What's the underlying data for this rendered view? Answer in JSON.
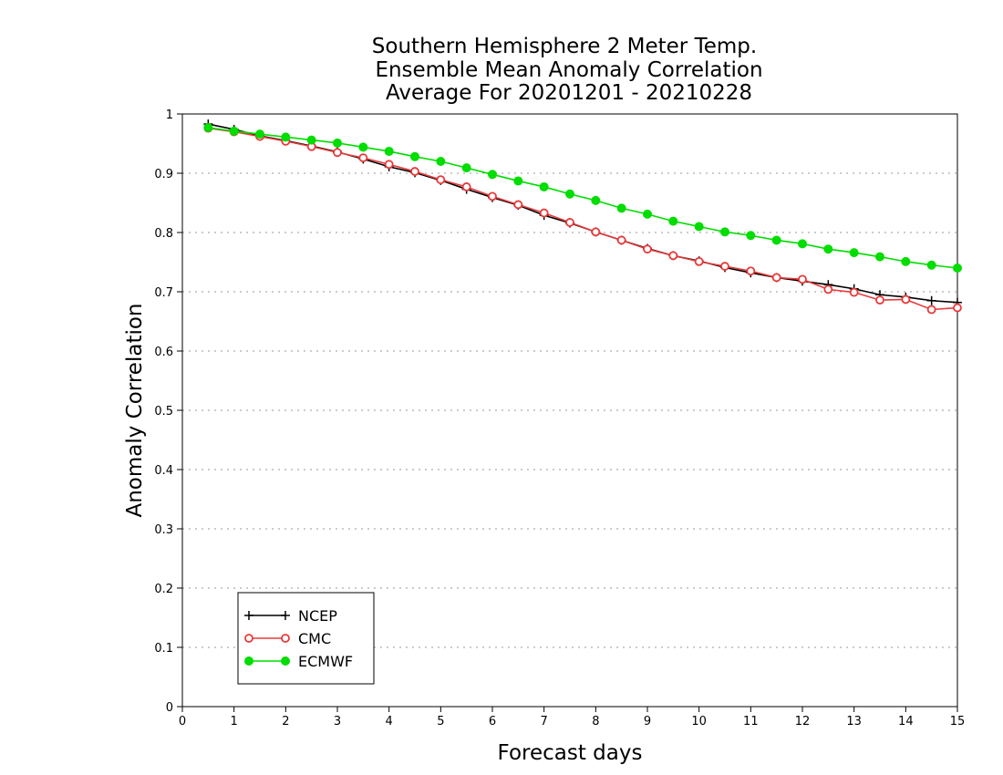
{
  "chart_data": {
    "type": "line",
    "title_lines": [
      "Southern Hemisphere 2 Meter Temp.",
      "Ensemble Mean Anomaly Correlation",
      "Average For 20201201 - 20210228"
    ],
    "xlabel": "Forecast days",
    "ylabel": "Anomaly Correlation",
    "xlim": [
      0,
      15
    ],
    "ylim": [
      0,
      1
    ],
    "xticks": [
      "0",
      "1",
      "2",
      "3",
      "4",
      "5",
      "6",
      "7",
      "8",
      "9",
      "10",
      "11",
      "12",
      "13",
      "14",
      "15"
    ],
    "yticks": [
      "0",
      "0.1",
      "0.2",
      "0.3",
      "0.4",
      "0.5",
      "0.6",
      "0.7",
      "0.8",
      "0.9",
      "1"
    ],
    "grid": "horizontal dotted",
    "legend_position": "bottom-left",
    "x": [
      0.5,
      1,
      1.5,
      2,
      2.5,
      3,
      3.5,
      4,
      4.5,
      5,
      5.5,
      6,
      6.5,
      7,
      7.5,
      8,
      8.5,
      9,
      9.5,
      10,
      10.5,
      11,
      11.5,
      12,
      12.5,
      13,
      13.5,
      14,
      14.5,
      15
    ],
    "series": [
      {
        "name": "NCEP",
        "color": "#000000",
        "marker": "plus",
        "values": [
          0.983,
          0.974,
          0.963,
          0.955,
          0.946,
          0.936,
          0.924,
          0.911,
          0.901,
          0.888,
          0.873,
          0.859,
          0.846,
          0.829,
          0.816,
          0.801,
          0.787,
          0.773,
          0.761,
          0.752,
          0.741,
          0.732,
          0.724,
          0.718,
          0.712,
          0.705,
          0.695,
          0.691,
          0.685,
          0.682
        ]
      },
      {
        "name": "CMC",
        "color": "#e83a3a",
        "marker": "open-circle",
        "values": [
          0.976,
          0.97,
          0.962,
          0.954,
          0.945,
          0.935,
          0.926,
          0.915,
          0.903,
          0.889,
          0.877,
          0.861,
          0.847,
          0.833,
          0.817,
          0.801,
          0.787,
          0.772,
          0.761,
          0.751,
          0.743,
          0.735,
          0.724,
          0.721,
          0.704,
          0.699,
          0.686,
          0.687,
          0.67,
          0.673
        ]
      },
      {
        "name": "ECMWF",
        "color": "#00dd00",
        "marker": "filled-circle",
        "values": [
          0.977,
          0.971,
          0.966,
          0.961,
          0.956,
          0.951,
          0.944,
          0.937,
          0.928,
          0.92,
          0.909,
          0.898,
          0.887,
          0.877,
          0.865,
          0.854,
          0.841,
          0.831,
          0.819,
          0.81,
          0.801,
          0.795,
          0.787,
          0.781,
          0.772,
          0.766,
          0.759,
          0.751,
          0.745,
          0.74
        ]
      }
    ]
  }
}
